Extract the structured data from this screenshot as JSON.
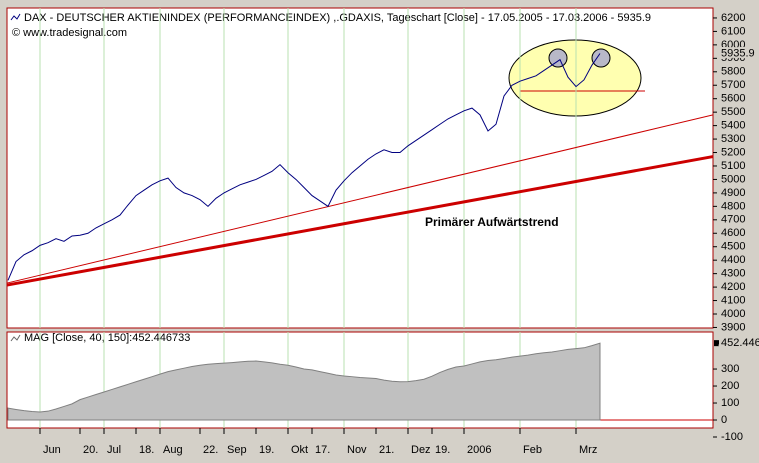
{
  "chart_data": [
    {
      "type": "line",
      "title": "DAX  - DEUTSCHER AKTIENINDEX (PERFORMANCEINDEX) ,.GDAXIS, Tageschart [Close] - 17.05.2005 - 17.03.2006 - 5935.9",
      "subtitle": "© www.tradesignal.com",
      "annotation": "Primärer Aufwärtstrend",
      "categories": [
        null,
        null,
        null,
        null,
        "Jun",
        null,
        null,
        null,
        null,
        "20.",
        null,
        null,
        "Jul",
        null,
        null,
        null,
        "18.",
        null,
        null,
        "Aug",
        null,
        null,
        null,
        null,
        "22.",
        null,
        null,
        "Sep",
        null,
        null,
        null,
        "19.",
        null,
        null,
        null,
        "Okt",
        null,
        null,
        "17.",
        null,
        null,
        null,
        "Nov",
        null,
        null,
        null,
        "21.",
        null,
        null,
        null,
        "Dez",
        null,
        null,
        "19.",
        null,
        null,
        null,
        "2006",
        null,
        null,
        null,
        null,
        null,
        null,
        "Feb",
        null,
        null,
        null,
        null,
        null,
        null,
        "Mrz",
        null,
        null,
        null
      ],
      "series": [
        {
          "name": "DAX",
          "color": "#000080",
          "values": [
            4250,
            4390,
            4440,
            4470,
            4510,
            4530,
            4560,
            4540,
            4580,
            4585,
            4600,
            4640,
            4670,
            4700,
            4735,
            4810,
            4880,
            4920,
            4960,
            4990,
            5010,
            4940,
            4900,
            4880,
            4850,
            4800,
            4860,
            4900,
            4930,
            4960,
            4980,
            5000,
            5030,
            5060,
            5110,
            5050,
            5000,
            4940,
            4880,
            4840,
            4800,
            4920,
            4990,
            5050,
            5100,
            5150,
            5190,
            5220,
            5200,
            5200,
            5250,
            5290,
            5330,
            5370,
            5410,
            5450,
            5480,
            5510,
            5530,
            5480,
            5360,
            5410,
            5620,
            5700,
            5730,
            5750,
            5770,
            5810,
            5850,
            5890,
            5760,
            5690,
            5740,
            5850,
            5935.9
          ]
        }
      ],
      "trendlines": [
        {
          "color": "#cc0000",
          "width": 1,
          "values": [
            4230,
            5480
          ]
        },
        {
          "color": "#cc0000",
          "width": 3,
          "values": [
            4215,
            5170
          ]
        }
      ],
      "ylim": [
        3896,
        6274
      ],
      "yticks": [
        3900,
        4000,
        4100,
        4200,
        4300,
        4400,
        4500,
        4600,
        4700,
        4800,
        4900,
        5000,
        5100,
        5200,
        5300,
        5400,
        5500,
        5600,
        5700,
        5800,
        5900,
        6000,
        6100,
        6200
      ]
    },
    {
      "type": "area",
      "title": "MAG [Close, 40, 150]:452.446733",
      "series": [
        {
          "name": "MAG",
          "color": "#c0c0c0",
          "values": [
            70,
            62,
            55,
            50,
            47,
            52,
            65,
            80,
            95,
            120,
            135,
            150,
            165,
            180,
            195,
            210,
            225,
            240,
            255,
            270,
            285,
            295,
            305,
            315,
            322,
            328,
            332,
            335,
            338,
            342,
            346,
            347,
            342,
            336,
            328,
            322,
            312,
            300,
            295,
            285,
            275,
            265,
            259,
            255,
            250,
            247,
            244,
            235,
            228,
            225,
            226,
            232,
            240,
            258,
            280,
            298,
            312,
            318,
            330,
            342,
            350,
            355,
            362,
            370,
            376,
            382,
            390,
            396,
            400,
            408,
            416,
            420,
            425,
            438,
            452.446733
          ]
        }
      ],
      "ylim": [
        -47,
        518
      ],
      "yticks": [
        -100,
        0,
        100,
        200,
        300
      ]
    }
  ]
}
